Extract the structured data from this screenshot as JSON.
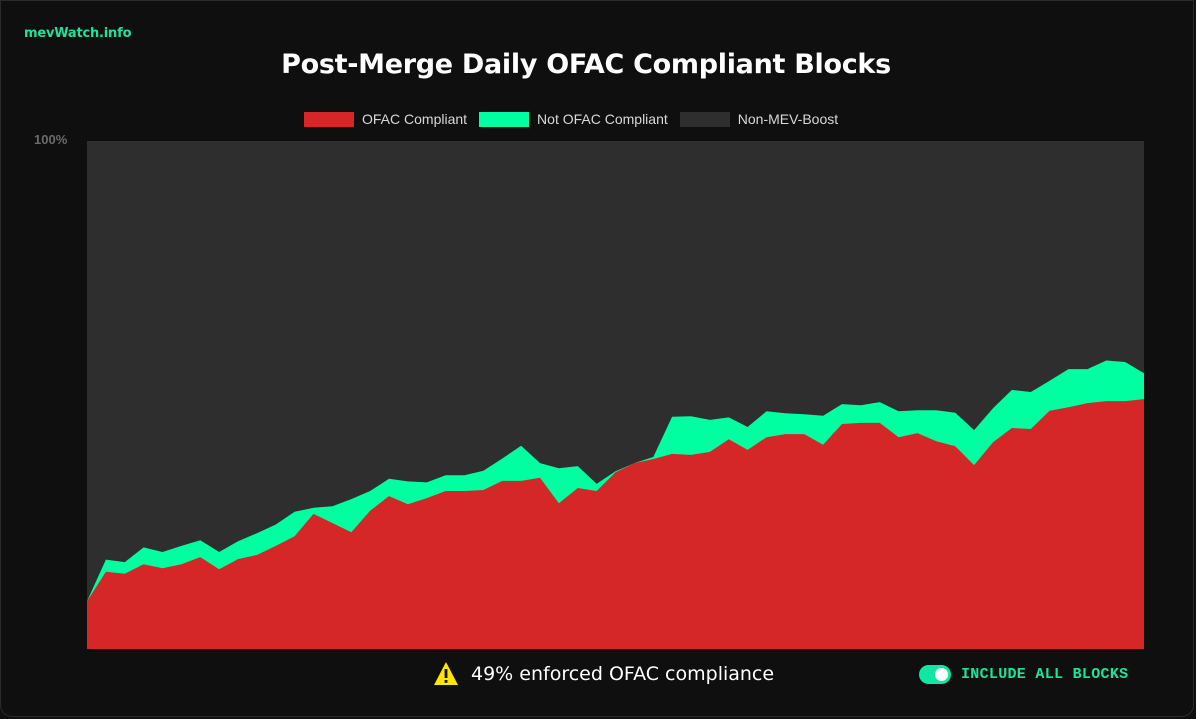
{
  "brand": {
    "label": "mevWatch.info",
    "color": "#1fe39a"
  },
  "title": "Post-Merge Daily OFAC Compliant Blocks",
  "legend": [
    {
      "label": "OFAC Compliant",
      "color": "#d62728"
    },
    {
      "label": "Not OFAC Compliant",
      "color": "#00ffa0"
    },
    {
      "label": "Non-MEV-Boost",
      "color": "#2e2e2e"
    }
  ],
  "y_axis": {
    "top_label": "100%"
  },
  "footer": {
    "warning_icon": "warning-triangle-icon",
    "status_text": "49% enforced OFAC compliance",
    "toggle": {
      "label": "INCLUDE ALL BLOCKS",
      "on": true
    }
  },
  "chart_data": {
    "type": "area",
    "stacked": true,
    "title": "Post-Merge Daily OFAC Compliant Blocks",
    "xlabel": "",
    "ylabel": "",
    "ylim": [
      0,
      100
    ],
    "y_tick_labels": [
      "100%"
    ],
    "legend_position": "top",
    "grid": false,
    "x": [
      1,
      2,
      3,
      4,
      5,
      6,
      7,
      8,
      9,
      10,
      11,
      12,
      13,
      14,
      15,
      16,
      17,
      18,
      19,
      20,
      21,
      22,
      23,
      24,
      25,
      26,
      27,
      28,
      29,
      30,
      31,
      32,
      33,
      34,
      35,
      36,
      37,
      38,
      39,
      40,
      41,
      42,
      43,
      44,
      45,
      46,
      47,
      48,
      49,
      50,
      51,
      52,
      53,
      54,
      55,
      56,
      57
    ],
    "series": [
      {
        "name": "OFAC Compliant",
        "color": "#d62728",
        "values": [
          9.4,
          15.2,
          14.8,
          16.7,
          15.9,
          16.7,
          18.1,
          15.7,
          17.7,
          18.5,
          20.3,
          22.2,
          26.6,
          24.8,
          23.0,
          27.2,
          30.1,
          28.5,
          29.7,
          31.1,
          31.1,
          31.3,
          33.1,
          33.1,
          33.7,
          28.7,
          31.7,
          31.1,
          34.8,
          36.6,
          37.4,
          38.4,
          38.2,
          38.8,
          41.3,
          39.2,
          41.7,
          42.3,
          42.3,
          40.2,
          44.3,
          44.5,
          44.5,
          41.7,
          42.5,
          40.9,
          39.9,
          36.2,
          40.7,
          43.5,
          43.3,
          46.9,
          47.6,
          48.4,
          48.8,
          48.8,
          49.2
        ]
      },
      {
        "name": "Not OFAC Compliant",
        "color": "#00ffa0",
        "values": [
          0.0,
          2.4,
          2.3,
          3.3,
          3.2,
          3.6,
          3.3,
          3.4,
          3.5,
          4.3,
          4.2,
          4.8,
          1.2,
          3.3,
          6.5,
          3.9,
          3.4,
          4.5,
          3.1,
          3.1,
          3.1,
          3.8,
          4.4,
          6.9,
          2.9,
          6.9,
          4.3,
          1.4,
          0.2,
          -0.2,
          0.4,
          7.3,
          7.6,
          6.3,
          4.3,
          4.5,
          5.1,
          4.1,
          3.9,
          5.7,
          3.9,
          3.5,
          4.1,
          5.1,
          4.5,
          6.1,
          6.6,
          6.9,
          6.7,
          7.5,
          7.3,
          5.9,
          7.5,
          6.7,
          8.0,
          7.7,
          5.1
        ]
      },
      {
        "name": "Non-MEV-Boost",
        "color": "#2e2e2e",
        "values": "remainder to 100%"
      }
    ]
  }
}
